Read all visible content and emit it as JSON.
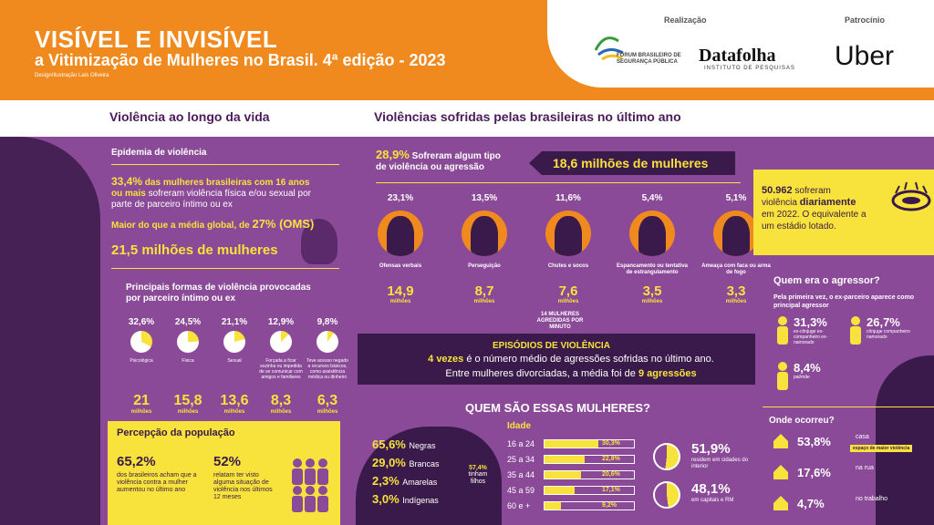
{
  "header": {
    "title": "VISÍVEL E INVISÍVEL",
    "subtitle": "a Vitimização de Mulheres no Brasil. 4ª edição - 2023",
    "credit": "Design/Ilustração Laís Oliveira",
    "realizacao_label": "Realização",
    "patrocinio_label": "Patrocínio",
    "fbsp_text_1": "FÓRUM BRASILEIRO DE",
    "fbsp_text_2": "SEGURANÇA PÚBLICA",
    "datafolha": "Datafolha",
    "datafolha_sub": "INSTITUTO DE PESQUISAS",
    "uber": "Uber"
  },
  "left": {
    "heading": "Violência ao longo da vida",
    "epidemia": "Epidemia de violência",
    "stat1_pct": "33,4%",
    "stat1_a": " das mulheres brasileiras com 16 anos",
    "stat1_b": "ou mais",
    "stat1_c": " sofreram violência física e/ou sexual por",
    "stat1_d": "parte de parceiro íntimo ou ex",
    "global_a": "Maior do que a média global, de ",
    "global_b": "27% (OMS)",
    "milhoes": "21,5 milhões de mulheres",
    "formas_h1": "Principais formas de violência provocadas",
    "formas_h2": "por parceiro íntimo ou ex",
    "formas": [
      {
        "pct": "32,6%",
        "label": "Psicológica",
        "value": "21",
        "unit": "milhões",
        "frac": 0.326
      },
      {
        "pct": "24,5%",
        "label": "Física",
        "value": "15,8",
        "unit": "milhões",
        "frac": 0.245
      },
      {
        "pct": "21,1%",
        "label": "Sexual",
        "value": "13,6",
        "unit": "milhões",
        "frac": 0.211
      },
      {
        "pct": "12,9%",
        "label": "Forçada a ficar sozinha ou impedida de se comunicar com amigos e familiares",
        "value": "8,3",
        "unit": "milhões",
        "frac": 0.129
      },
      {
        "pct": "9,8%",
        "label": "Teve acesso negado a recursos básicos, como assistência médica ou dinheiro",
        "value": "6,3",
        "unit": "milhões",
        "frac": 0.098
      }
    ],
    "percepcao_h": "Percepção da população",
    "perc1_pct": "65,2%",
    "perc1_txt": "dos brasileiros acham que a violência contra a mulher aumentou no último ano",
    "perc2_pct": "52%",
    "perc2_txt": "relatam ter visto alguma situação de violência nos últimos 12 meses"
  },
  "mid": {
    "heading": "Violências sofridas pelas brasileiras no último ano",
    "top_pct": "28,9%",
    "top_txt_a": " Sofreram algum tipo",
    "top_txt_b": "de violência ou agressão",
    "top_milhoes": "18,6 milhões de mulheres",
    "types": [
      {
        "pct": "23,1%",
        "label": "Ofensas verbais",
        "value": "14,9",
        "unit": "milhões"
      },
      {
        "pct": "13,5%",
        "label": "Perseguição",
        "value": "8,7",
        "unit": "milhões"
      },
      {
        "pct": "11,6%",
        "label": "Chutes e socos",
        "value": "7,6",
        "unit": "milhões"
      },
      {
        "pct": "5,4%",
        "label": "Espancamento ou tentativa de estrangulamento",
        "value": "3,5",
        "unit": "milhões"
      },
      {
        "pct": "5,1%",
        "label": "Ameaça com faca ou arma de fogo",
        "value": "3,3",
        "unit": "milhões"
      }
    ],
    "agredidas": "14 MULHERES AGREDIDAS POR MINUTO",
    "episodios_h": "EPISÓDIOS DE VIOLÊNCIA",
    "episodios_a": "4 vezes",
    "episodios_b": " é o número médio de agressões sofridas no último ano.",
    "episodios_c": "Entre mulheres divorciadas, a média foi de ",
    "episodios_d": "9 agressões",
    "quem_h": "QUEM SÃO ESSAS MULHERES?",
    "racas": [
      {
        "pct": "65,6%",
        "label": "Negras"
      },
      {
        "pct": "29,0%",
        "label": "Brancas"
      },
      {
        "pct": "2,3%",
        "label": "Amarelas"
      },
      {
        "pct": "3,0%",
        "label": "Indígenas"
      }
    ],
    "filhos_pct": "57,4%",
    "filhos_txt": "tinham filhos",
    "idade_h": "Idade",
    "idades": [
      {
        "label": "16 a 24",
        "pct": "30,3%",
        "value": 30.3
      },
      {
        "label": "25 a 34",
        "pct": "22,8%",
        "value": 22.8
      },
      {
        "label": "35 a 44",
        "pct": "20,6%",
        "value": 20.6
      },
      {
        "label": "45 a 59",
        "pct": "17,1%",
        "value": 17.1
      },
      {
        "label": "60 e +",
        "pct": "9,2%",
        "value": 9.2
      }
    ],
    "interior_pct": "51,9%",
    "interior_txt": "residem em cidades do interior",
    "capitais_pct": "48,1%",
    "capitais_txt": "em capitais e RM"
  },
  "right": {
    "diario_a": "50.962",
    "diario_b": " sofreram",
    "diario_c": "violência ",
    "diario_d": "diariamente",
    "diario_e": "em 2022. O equivalente a",
    "diario_f": "um estádio lotado.",
    "quem_h": "Quem era o agressor?",
    "quem_sub": "Pela primeira vez, o ex-parceiro aparece como principal agressor",
    "agressores": [
      {
        "pct": "31,3%",
        "label": "ex-cônjuge ex-companheiro ex-namorado"
      },
      {
        "pct": "26,7%",
        "label": "cônjuge companheiro namorado"
      },
      {
        "pct": "8,4%",
        "label": "pai/mãe"
      }
    ],
    "onde_h": "Onde ocorreu?",
    "locais": [
      {
        "pct": "53,8%",
        "label": "casa",
        "tag": "espaço de maior violência"
      },
      {
        "pct": "17,6%",
        "label": "na rua",
        "tag": ""
      },
      {
        "pct": "4,7%",
        "label": "no trabalho",
        "tag": ""
      }
    ]
  }
}
